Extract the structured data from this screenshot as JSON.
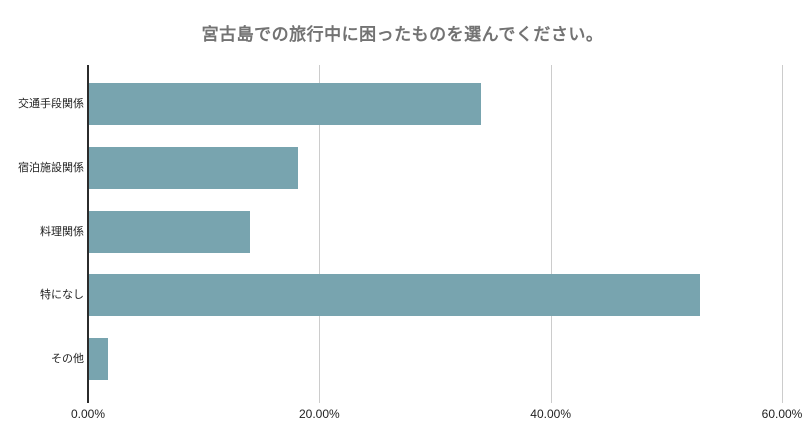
{
  "chart_data": {
    "type": "bar",
    "orientation": "horizontal",
    "title": "宮古島での旅行中に困ったものを選んでください。",
    "categories": [
      "交通手段関係",
      "宿泊施設関係",
      "料理関係",
      "特になし",
      "その他"
    ],
    "values": [
      33.9,
      18.1,
      13.9,
      52.8,
      1.6
    ],
    "value_unit": "%",
    "x_tick_values": [
      0,
      20,
      40,
      60
    ],
    "x_tick_labels": [
      "0.00%",
      "20.00%",
      "40.00%",
      "60.00%"
    ],
    "xlim": [
      0,
      60
    ],
    "grid": "vertical gridlines on",
    "legend": "none",
    "colors": {
      "bar": "#78a4af",
      "gridline": "#cccccc",
      "baseline": "#2b2b2b",
      "title": "#737373",
      "axis_label": "#222222"
    }
  }
}
